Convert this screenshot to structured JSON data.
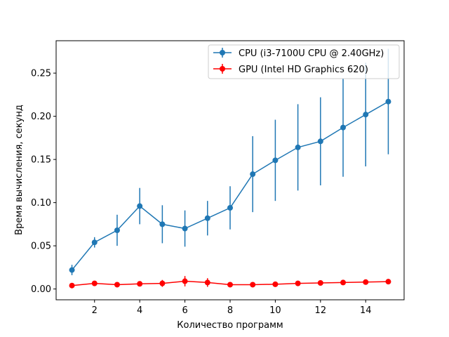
{
  "chart_data": {
    "type": "line",
    "xlabel": "Количество программ",
    "ylabel": "Время вычисления, секунд",
    "xlim": [
      0.3,
      15.7
    ],
    "ylim": [
      -0.0125,
      0.2875
    ],
    "xticks": [
      "2",
      "4",
      "6",
      "8",
      "10",
      "12",
      "14"
    ],
    "yticks": [
      "0.00",
      "0.05",
      "0.10",
      "0.15",
      "0.20",
      "0.25"
    ],
    "legend_position": "top-right",
    "x": [
      1,
      2,
      3,
      4,
      5,
      6,
      7,
      8,
      9,
      10,
      11,
      12,
      13,
      14,
      15
    ],
    "series": [
      {
        "name": "CPU (i3-7100U CPU @ 2.40GHz)",
        "color": "#1f77b4",
        "values": [
          0.022,
          0.054,
          0.068,
          0.096,
          0.075,
          0.07,
          0.082,
          0.094,
          0.133,
          0.149,
          0.164,
          0.171,
          0.187,
          0.202,
          0.217
        ],
        "errors": [
          0.006,
          0.006,
          0.018,
          0.021,
          0.022,
          0.021,
          0.02,
          0.025,
          0.044,
          0.047,
          0.05,
          0.051,
          0.057,
          0.06,
          0.061
        ]
      },
      {
        "name": "GPU (Intel HD Graphics 620)",
        "color": "#ff0000",
        "values": [
          0.004,
          0.0065,
          0.005,
          0.006,
          0.0065,
          0.009,
          0.0075,
          0.005,
          0.005,
          0.0055,
          0.0065,
          0.007,
          0.0075,
          0.008,
          0.0085
        ],
        "errors": [
          0.0015,
          0.002,
          0.002,
          0.002,
          0.004,
          0.006,
          0.005,
          0.0015,
          0.0015,
          0.002,
          0.002,
          0.002,
          0.002,
          0.002,
          0.002
        ]
      }
    ]
  }
}
